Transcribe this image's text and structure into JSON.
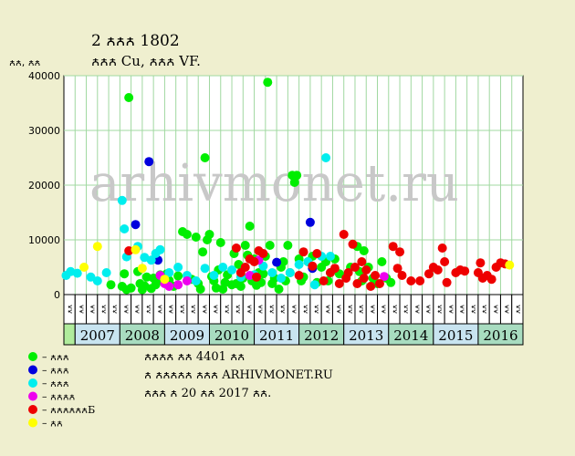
{
  "chart_data": {
    "type": "scatter",
    "title": "2 ꙉꙉꙉ 1802",
    "subtitle": "ꙉꙉꙉ Cu, ꙉꙉꙉ VF.",
    "ylabel": "ꙉꙉ, ꙉꙉ",
    "watermark": "arhivmonet.ru",
    "ylim": [
      0,
      40000
    ],
    "yticks": [
      0,
      10000,
      20000,
      30000,
      40000
    ],
    "years": [
      "2007",
      "2008",
      "2009",
      "2010",
      "2011",
      "2012",
      "2013",
      "2014",
      "2015",
      "2016"
    ],
    "quarter_labels": [
      "ꙉꙉ",
      "ꙉꙉ",
      "ꙉꙉ",
      "ꙉꙉ"
    ],
    "x_start": 2006.75,
    "x_end": 2017.0,
    "grid": true,
    "legend_position": "bottom-left",
    "colors": {
      "background": "#efefcf",
      "plot": "#ffffff",
      "grid": "#a0d8a0",
      "year_band_alt": "#a8dcc0",
      "year_band": "#c8e4f0",
      "first_cell": "#b0ec9c"
    },
    "series": [
      {
        "name": "ꙉꙉꙉ",
        "color": "#00ee00",
        "points": [
          [
            2007.8,
            1800
          ],
          [
            2008.05,
            1500
          ],
          [
            2008.1,
            3800
          ],
          [
            2008.15,
            900
          ],
          [
            2008.2,
            36000
          ],
          [
            2008.25,
            1200
          ],
          [
            2008.4,
            4200
          ],
          [
            2008.45,
            2000
          ],
          [
            2008.5,
            900
          ],
          [
            2008.55,
            1600
          ],
          [
            2008.6,
            3200
          ],
          [
            2008.7,
            1100
          ],
          [
            2008.75,
            3000
          ],
          [
            2008.8,
            1800
          ],
          [
            2008.85,
            2500
          ],
          [
            2008.9,
            3600
          ],
          [
            2009.0,
            2200
          ],
          [
            2009.05,
            3800
          ],
          [
            2009.1,
            2600
          ],
          [
            2009.2,
            1500
          ],
          [
            2009.3,
            3400
          ],
          [
            2009.4,
            11500
          ],
          [
            2009.5,
            11000
          ],
          [
            2009.6,
            2800
          ],
          [
            2009.7,
            10500
          ],
          [
            2009.75,
            2000
          ],
          [
            2009.8,
            1000
          ],
          [
            2009.85,
            7800
          ],
          [
            2009.9,
            25000
          ],
          [
            2009.95,
            10000
          ],
          [
            2010.0,
            11000
          ],
          [
            2010.05,
            3300
          ],
          [
            2010.1,
            2500
          ],
          [
            2010.15,
            1200
          ],
          [
            2010.2,
            4500
          ],
          [
            2010.25,
            9500
          ],
          [
            2010.3,
            1000
          ],
          [
            2010.35,
            2200
          ],
          [
            2010.4,
            3600
          ],
          [
            2010.5,
            1800
          ],
          [
            2010.55,
            7500
          ],
          [
            2010.6,
            2000
          ],
          [
            2010.65,
            5500
          ],
          [
            2010.7,
            1500
          ],
          [
            2010.75,
            3000
          ],
          [
            2010.8,
            9000
          ],
          [
            2010.85,
            7200
          ],
          [
            2010.9,
            12500
          ],
          [
            2010.95,
            2500
          ],
          [
            2011.0,
            6500
          ],
          [
            2011.05,
            1700
          ],
          [
            2011.1,
            4000
          ],
          [
            2011.15,
            2200
          ],
          [
            2011.2,
            3800
          ],
          [
            2011.25,
            7000
          ],
          [
            2011.3,
            38800
          ],
          [
            2011.35,
            9000
          ],
          [
            2011.4,
            2000
          ],
          [
            2011.45,
            3000
          ],
          [
            2011.55,
            1000
          ],
          [
            2011.6,
            5000
          ],
          [
            2011.65,
            6000
          ],
          [
            2011.7,
            2500
          ],
          [
            2011.75,
            9000
          ],
          [
            2011.8,
            4000
          ],
          [
            2011.85,
            21800
          ],
          [
            2011.9,
            20500
          ],
          [
            2011.95,
            21800
          ],
          [
            2012.0,
            6500
          ],
          [
            2012.05,
            2500
          ],
          [
            2012.1,
            3200
          ],
          [
            2012.2,
            6000
          ],
          [
            2012.3,
            7000
          ],
          [
            2012.4,
            2200
          ],
          [
            2012.5,
            5000
          ],
          [
            2012.6,
            6000
          ],
          [
            2012.65,
            2500
          ],
          [
            2012.7,
            4000
          ],
          [
            2012.8,
            6500
          ],
          [
            2012.9,
            3800
          ],
          [
            2013.05,
            3200
          ],
          [
            2013.15,
            5000
          ],
          [
            2013.3,
            8800
          ],
          [
            2013.35,
            4200
          ],
          [
            2013.4,
            2500
          ],
          [
            2013.45,
            8000
          ],
          [
            2013.55,
            5000
          ],
          [
            2013.65,
            3000
          ],
          [
            2013.75,
            2000
          ],
          [
            2013.85,
            6000
          ],
          [
            2013.95,
            3000
          ],
          [
            2014.05,
            2200
          ]
        ]
      },
      {
        "name": "ꙉꙉꙉ",
        "color": "#0000dd",
        "points": [
          [
            2008.35,
            12800
          ],
          [
            2008.65,
            24300
          ],
          [
            2008.85,
            6300
          ],
          [
            2011.5,
            5900
          ],
          [
            2012.25,
            13200
          ],
          [
            2012.3,
            4800
          ]
        ]
      },
      {
        "name": "ꙉꙉꙉ",
        "color": "#00eeee",
        "points": [
          [
            2006.8,
            3500
          ],
          [
            2006.9,
            4200
          ],
          [
            2007.05,
            3900
          ],
          [
            2007.35,
            3200
          ],
          [
            2007.5,
            2500
          ],
          [
            2007.7,
            4000
          ],
          [
            2008.05,
            17200
          ],
          [
            2008.1,
            12000
          ],
          [
            2008.15,
            6900
          ],
          [
            2008.4,
            8800
          ],
          [
            2008.55,
            6800
          ],
          [
            2008.7,
            6300
          ],
          [
            2008.8,
            7500
          ],
          [
            2008.9,
            8200
          ],
          [
            2009.1,
            4000
          ],
          [
            2009.3,
            5000
          ],
          [
            2009.5,
            3500
          ],
          [
            2009.7,
            2500
          ],
          [
            2009.9,
            4800
          ],
          [
            2010.1,
            3500
          ],
          [
            2010.3,
            5000
          ],
          [
            2010.5,
            4500
          ],
          [
            2010.7,
            3200
          ],
          [
            2011.0,
            3600
          ],
          [
            2011.2,
            5200
          ],
          [
            2011.4,
            4000
          ],
          [
            2011.6,
            3000
          ],
          [
            2011.8,
            4000
          ],
          [
            2012.0,
            5500
          ],
          [
            2012.2,
            6000
          ],
          [
            2012.35,
            1800
          ],
          [
            2012.5,
            7000
          ],
          [
            2012.6,
            25000
          ],
          [
            2012.7,
            7000
          ]
        ]
      },
      {
        "name": "ꙉꙉꙉꙉ",
        "color": "#ee00ee",
        "points": [
          [
            2008.9,
            3500
          ],
          [
            2009.0,
            2000
          ],
          [
            2009.1,
            1500
          ],
          [
            2009.3,
            1800
          ],
          [
            2009.5,
            2500
          ],
          [
            2010.9,
            3500
          ],
          [
            2011.1,
            6300
          ],
          [
            2013.9,
            3300
          ]
        ]
      },
      {
        "name": "ꙉꙉꙉꙉꙉꙉБ",
        "color": "#ee0000",
        "points": [
          [
            2008.2,
            8000
          ],
          [
            2010.6,
            8500
          ],
          [
            2010.7,
            4000
          ],
          [
            2010.8,
            5000
          ],
          [
            2010.9,
            6500
          ],
          [
            2011.0,
            6000
          ],
          [
            2011.05,
            3200
          ],
          [
            2011.1,
            8000
          ],
          [
            2011.2,
            7500
          ],
          [
            2012.0,
            3500
          ],
          [
            2012.1,
            7800
          ],
          [
            2012.3,
            5200
          ],
          [
            2012.4,
            7500
          ],
          [
            2012.55,
            2500
          ],
          [
            2012.7,
            4000
          ],
          [
            2012.8,
            4800
          ],
          [
            2012.9,
            2000
          ],
          [
            2013.0,
            11000
          ],
          [
            2013.05,
            3000
          ],
          [
            2013.1,
            4000
          ],
          [
            2013.2,
            9200
          ],
          [
            2013.25,
            5000
          ],
          [
            2013.3,
            2000
          ],
          [
            2013.4,
            6000
          ],
          [
            2013.45,
            3000
          ],
          [
            2013.5,
            4500
          ],
          [
            2013.6,
            1500
          ],
          [
            2013.7,
            3500
          ],
          [
            2013.8,
            2000
          ],
          [
            2014.1,
            8800
          ],
          [
            2014.2,
            4800
          ],
          [
            2014.25,
            7800
          ],
          [
            2014.3,
            3500
          ],
          [
            2014.5,
            2500
          ],
          [
            2014.7,
            2500
          ],
          [
            2014.9,
            3800
          ],
          [
            2015.0,
            5000
          ],
          [
            2015.1,
            4500
          ],
          [
            2015.2,
            8500
          ],
          [
            2015.25,
            6000
          ],
          [
            2015.3,
            2200
          ],
          [
            2015.5,
            4000
          ],
          [
            2015.6,
            4500
          ],
          [
            2015.7,
            4300
          ],
          [
            2016.0,
            4000
          ],
          [
            2016.05,
            5800
          ],
          [
            2016.1,
            3000
          ],
          [
            2016.2,
            3500
          ],
          [
            2016.3,
            2800
          ],
          [
            2016.4,
            5000
          ],
          [
            2016.5,
            5800
          ],
          [
            2016.6,
            5600
          ]
        ]
      },
      {
        "name": "ꙉꙉ",
        "color": "#ffff00",
        "points": [
          [
            2007.2,
            5000
          ],
          [
            2007.5,
            8800
          ],
          [
            2008.35,
            8200
          ],
          [
            2008.5,
            4800
          ],
          [
            2009.0,
            2800
          ],
          [
            2016.7,
            5400
          ]
        ]
      }
    ],
    "notes": [
      "ꙉꙉꙉꙉ ꙉꙉ 4401 ꙉꙉ",
      "ꙉ ꙉꙉꙉꙉꙉ ꙉꙉꙉ ARHIVMONET.RU",
      "ꙉꙉꙉ ꙉ 20 ꙉꙉ 2017 ꙉꙉ."
    ]
  }
}
